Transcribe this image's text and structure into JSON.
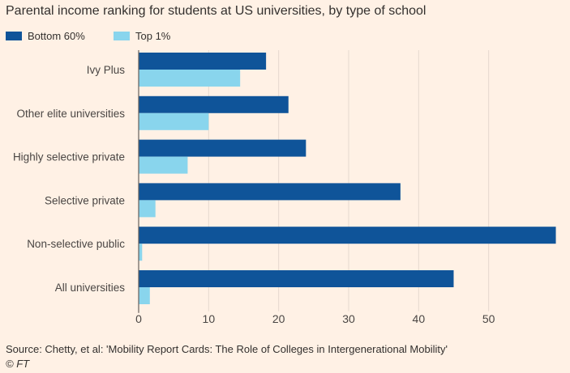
{
  "chart_data": {
    "type": "bar",
    "orientation": "horizontal",
    "title": "Parental income ranking for students at US universities, by type of school",
    "categories": [
      "Ivy Plus",
      "Other elite universities",
      "Highly selective private",
      "Selective private",
      "Non-selective public",
      "All universities"
    ],
    "series": [
      {
        "name": "Bottom 60%",
        "color": "#0f5499",
        "values": [
          18.2,
          21.4,
          23.9,
          37.4,
          59.6,
          45.0
        ]
      },
      {
        "name": "Top 1%",
        "color": "#89d5ed",
        "values": [
          14.5,
          10.0,
          7.0,
          2.4,
          0.5,
          1.6
        ]
      }
    ],
    "x_ticks": [
      "0",
      "10",
      "20",
      "30",
      "40",
      "50"
    ],
    "xlim": [
      0,
      60
    ],
    "grid": true,
    "legend_position": "top-left",
    "source": "Source: Chetty, et al: 'Mobility Report Cards: The Role of Colleges in Intergenerational Mobility'",
    "credit": "© FT"
  }
}
